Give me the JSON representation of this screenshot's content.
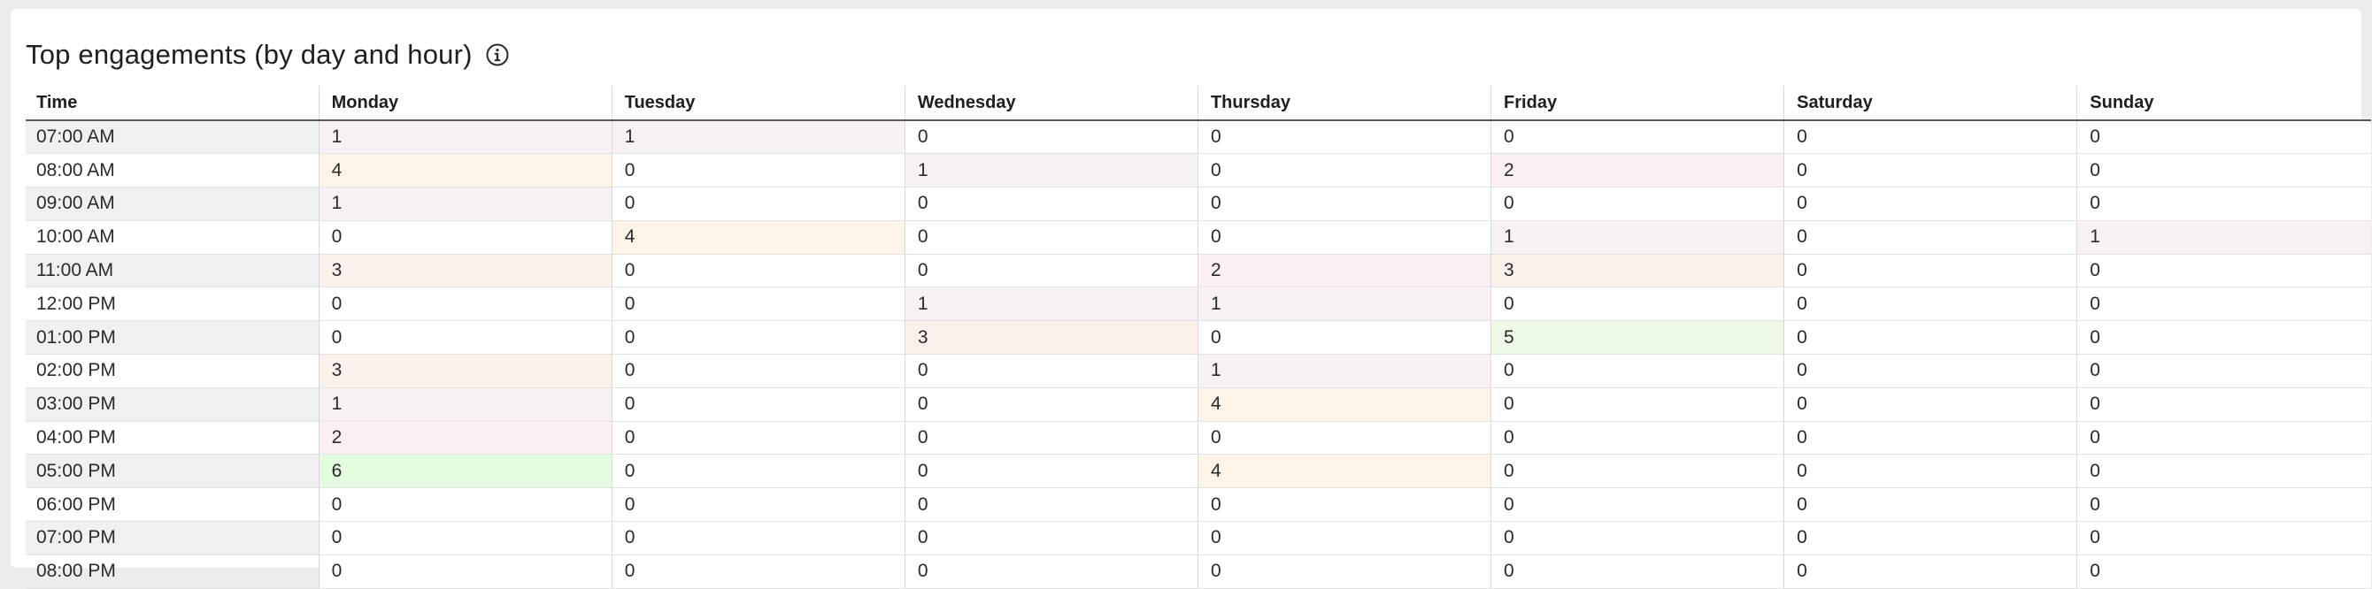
{
  "header": {
    "title": "Top engagements (by day and hour)",
    "info_icon": "info-circle-icon"
  },
  "table": {
    "columns": [
      "Time",
      "Monday",
      "Tuesday",
      "Wednesday",
      "Thursday",
      "Friday",
      "Saturday",
      "Sunday"
    ],
    "rows": [
      {
        "time": "07:00 AM",
        "values": [
          1,
          1,
          0,
          0,
          0,
          0,
          0
        ]
      },
      {
        "time": "08:00 AM",
        "values": [
          4,
          0,
          1,
          0,
          2,
          0,
          0
        ]
      },
      {
        "time": "09:00 AM",
        "values": [
          1,
          0,
          0,
          0,
          0,
          0,
          0
        ]
      },
      {
        "time": "10:00 AM",
        "values": [
          0,
          4,
          0,
          0,
          1,
          0,
          1
        ]
      },
      {
        "time": "11:00 AM",
        "values": [
          3,
          0,
          0,
          2,
          3,
          0,
          0
        ]
      },
      {
        "time": "12:00 PM",
        "values": [
          0,
          0,
          1,
          1,
          0,
          0,
          0
        ]
      },
      {
        "time": "01:00 PM",
        "values": [
          0,
          0,
          3,
          0,
          5,
          0,
          0
        ]
      },
      {
        "time": "02:00 PM",
        "values": [
          3,
          0,
          0,
          1,
          0,
          0,
          0
        ]
      },
      {
        "time": "03:00 PM",
        "values": [
          1,
          0,
          0,
          4,
          0,
          0,
          0
        ]
      },
      {
        "time": "04:00 PM",
        "values": [
          2,
          0,
          0,
          0,
          0,
          0,
          0
        ]
      },
      {
        "time": "05:00 PM",
        "values": [
          6,
          0,
          0,
          4,
          0,
          0,
          0
        ]
      },
      {
        "time": "06:00 PM",
        "values": [
          0,
          0,
          0,
          0,
          0,
          0,
          0
        ]
      },
      {
        "time": "07:00 PM",
        "values": [
          0,
          0,
          0,
          0,
          0,
          0,
          0
        ]
      },
      {
        "time": "08:00 PM",
        "values": [
          0,
          0,
          0,
          0,
          0,
          0,
          0
        ]
      }
    ]
  },
  "colors": {
    "heat_scale": [
      "#ffffff",
      "#f7f1f3",
      "#fbf0ef",
      "#fcf1ea",
      "#fdf4e8",
      "#eef8e6",
      "#e3fbdf"
    ],
    "time_stripe": "#f0f0f0",
    "header_rule": "#5a5a5a"
  }
}
